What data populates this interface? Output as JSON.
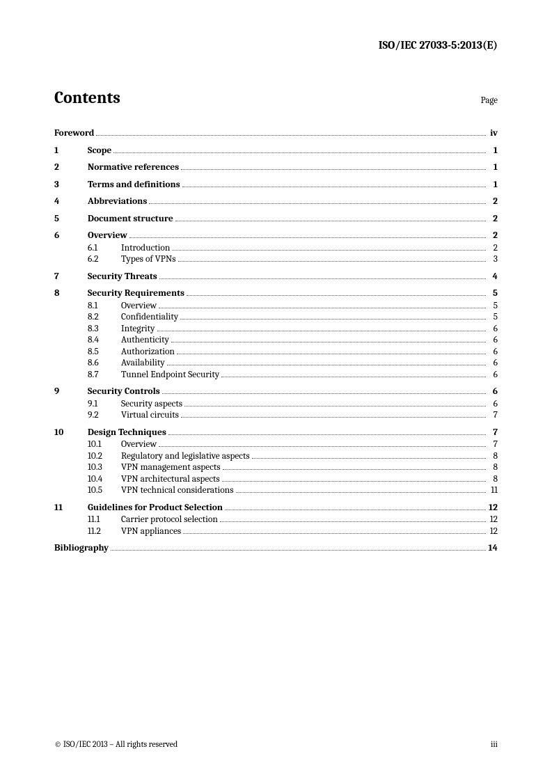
{
  "document_header": "ISO/IEC 27033-5:2013(E)",
  "contents_title": "Contents",
  "page_label": "Page",
  "footer_left": "© ISO/IEC 2013 – All rights reserved",
  "footer_right": "iii",
  "toc": {
    "foreword": {
      "label": "Foreword",
      "page": "iv"
    },
    "s1": {
      "num": "1",
      "title": "Scope",
      "page": "1"
    },
    "s2": {
      "num": "2",
      "title": "Normative references",
      "page": "1"
    },
    "s3": {
      "num": "3",
      "title": "Terms and definitions",
      "page": "1"
    },
    "s4": {
      "num": "4",
      "title": "Abbreviations",
      "page": "2"
    },
    "s5": {
      "num": "5",
      "title": "Document structure",
      "page": "2"
    },
    "s6": {
      "num": "6",
      "title": "Overview",
      "page": "2",
      "sub": [
        {
          "num": "6.1",
          "title": "Introduction",
          "page": "2"
        },
        {
          "num": "6.2",
          "title": "Types of VPNs",
          "page": "3"
        }
      ]
    },
    "s7": {
      "num": "7",
      "title": "Security Threats",
      "page": "4"
    },
    "s8": {
      "num": "8",
      "title": "Security Requirements",
      "page": "5",
      "sub": [
        {
          "num": "8.1",
          "title": "Overview",
          "page": "5"
        },
        {
          "num": "8.2",
          "title": "Confidentiality",
          "page": "5"
        },
        {
          "num": "8.3",
          "title": "Integrity",
          "page": "6"
        },
        {
          "num": "8.4",
          "title": "Authenticity",
          "page": "6"
        },
        {
          "num": "8.5",
          "title": "Authorization",
          "page": "6"
        },
        {
          "num": "8.6",
          "title": "Availability",
          "page": "6"
        },
        {
          "num": "8.7",
          "title": "Tunnel Endpoint Security",
          "page": "6"
        }
      ]
    },
    "s9": {
      "num": "9",
      "title": "Security Controls",
      "page": "6",
      "sub": [
        {
          "num": "9.1",
          "title": "Security aspects",
          "page": "6"
        },
        {
          "num": "9.2",
          "title": "Virtual circuits",
          "page": "7"
        }
      ]
    },
    "s10": {
      "num": "10",
      "title": "Design Techniques",
      "page": "7",
      "sub": [
        {
          "num": "10.1",
          "title": "Overview",
          "page": "7"
        },
        {
          "num": "10.2",
          "title": "Regulatory and legislative aspects",
          "page": "8"
        },
        {
          "num": "10.3",
          "title": "VPN management aspects",
          "page": "8"
        },
        {
          "num": "10.4",
          "title": "VPN architectural aspects",
          "page": "8"
        },
        {
          "num": "10.5",
          "title": "VPN technical considerations",
          "page": "11"
        }
      ]
    },
    "s11": {
      "num": "11",
      "title": "Guidelines for Product Selection",
      "page": "12",
      "sub": [
        {
          "num": "11.1",
          "title": "Carrier protocol selection",
          "page": "12"
        },
        {
          "num": "11.2",
          "title": "VPN appliances",
          "page": "12"
        }
      ]
    },
    "bibliography": {
      "label": "Bibliography",
      "page": "14"
    }
  }
}
